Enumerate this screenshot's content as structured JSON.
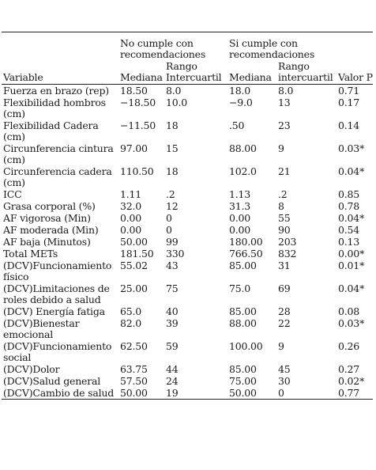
{
  "table": {
    "headers": {
      "variable": "Variable",
      "group_no": "No cumple con recomendaciones",
      "group_yes": "Si cumple con recomendaciones",
      "p_value": "Valor P",
      "median_no": "Mediana",
      "iqr_no": "Rango Intercuartil",
      "median_yes": "Mediana",
      "iqr_yes": "Rango intercuartil"
    },
    "rows": [
      {
        "variable": "Fuerza en brazo (rep)",
        "median_no": "18.50",
        "iqr_no": "8.0",
        "median_yes": "18.0",
        "iqr_yes": "8.0",
        "p": "0.71"
      },
      {
        "variable": "Flexibilidad hombros (cm)",
        "median_no": "−18.50",
        "iqr_no": "10.0",
        "median_yes": "−9.0",
        "iqr_yes": "13",
        "p": "0.17"
      },
      {
        "variable": "Flexibilidad Cadera (cm)",
        "median_no": "−11.50",
        "iqr_no": "18",
        "median_yes": ".50",
        "iqr_yes": "23",
        "p": "0.14"
      },
      {
        "variable": "Circunferencia cintura (cm)",
        "median_no": "97.00",
        "iqr_no": "15",
        "median_yes": "88.00",
        "iqr_yes": "9",
        "p": "0.03*"
      },
      {
        "variable": "Circunferencia cadera (cm)",
        "median_no": "110.50",
        "iqr_no": "18",
        "median_yes": "102.0",
        "iqr_yes": "21",
        "p": "0.04*"
      },
      {
        "variable": "ICC",
        "median_no": "1.11",
        "iqr_no": ".2",
        "median_yes": "1.13",
        "iqr_yes": ".2",
        "p": "0.85"
      },
      {
        "variable": "Grasa corporal (%)",
        "median_no": "32.0",
        "iqr_no": "12",
        "median_yes": "31.3",
        "iqr_yes": "8",
        "p": "0.78"
      },
      {
        "variable": "AF vigorosa (Min)",
        "median_no": "0.00",
        "iqr_no": "0",
        "median_yes": "0.00",
        "iqr_yes": "55",
        "p": "0.04*"
      },
      {
        "variable": "AF moderada (Min)",
        "median_no": "0.00",
        "iqr_no": "0",
        "median_yes": "0.00",
        "iqr_yes": "90",
        "p": "0.54"
      },
      {
        "variable": "AF baja (Minutos)",
        "median_no": "50.00",
        "iqr_no": "99",
        "median_yes": "180.00",
        "iqr_yes": "203",
        "p": "0.13"
      },
      {
        "variable": "Total METs",
        "median_no": "181.50",
        "iqr_no": "330",
        "median_yes": "766.50",
        "iqr_yes": "832",
        "p": "0.00*"
      },
      {
        "variable": "(DCV)Funcionamiento físico",
        "median_no": "55.02",
        "iqr_no": "43",
        "median_yes": "85.00",
        "iqr_yes": "31",
        "p": "0.01*"
      },
      {
        "variable": "(DCV)Limitaciones de roles debido a salud",
        "median_no": "25.00",
        "iqr_no": "75",
        "median_yes": "75.0",
        "iqr_yes": "69",
        "p": "0.04*"
      },
      {
        "variable": "(DCV) Energía fatiga",
        "median_no": "65.0",
        "iqr_no": "40",
        "median_yes": "85.00",
        "iqr_yes": "28",
        "p": "0.08"
      },
      {
        "variable": "(DCV)Bienestar emocional",
        "median_no": "82.0",
        "iqr_no": "39",
        "median_yes": "88.00",
        "iqr_yes": "22",
        "p": "0.03*"
      },
      {
        "variable": "(DCV)Funcionamiento social",
        "median_no": "62.50",
        "iqr_no": "59",
        "median_yes": "100.00",
        "iqr_yes": "9",
        "p": "0.26"
      },
      {
        "variable": "(DCV)Dolor",
        "median_no": "63.75",
        "iqr_no": "44",
        "median_yes": "85.00",
        "iqr_yes": "45",
        "p": "0.27"
      },
      {
        "variable": "(DCV)Salud general",
        "median_no": "57.50",
        "iqr_no": "24",
        "median_yes": "75.00",
        "iqr_yes": "30",
        "p": "0.02*"
      },
      {
        "variable": "(DCV)Cambio de salud",
        "median_no": "50.00",
        "iqr_no": "19",
        "median_yes": "50.00",
        "iqr_yes": "0",
        "p": "0.77"
      }
    ]
  }
}
